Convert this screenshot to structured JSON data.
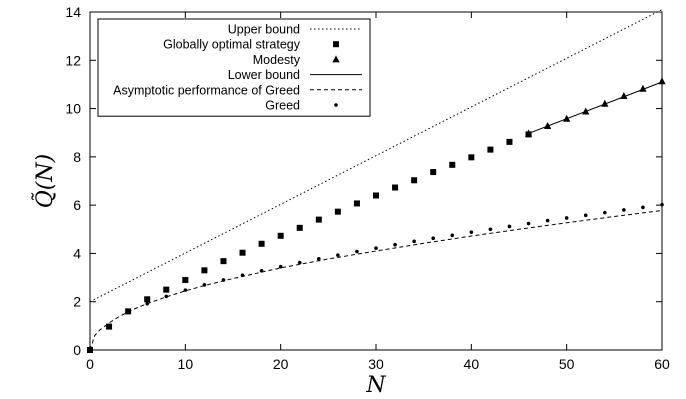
{
  "chart_data": {
    "type": "scatter",
    "title": "",
    "xlabel": "N",
    "ylabel": "Q̃(N)",
    "xlim": [
      0,
      60
    ],
    "ylim": [
      0,
      14
    ],
    "xticks": [
      "0",
      "10",
      "20",
      "30",
      "40",
      "50",
      "60"
    ],
    "yticks": [
      "0",
      "2",
      "4",
      "6",
      "8",
      "10",
      "12",
      "14"
    ],
    "legend_position": "top-left",
    "grid": false,
    "series": [
      {
        "name": "Upper bound",
        "kind": "line",
        "dash": "dotted",
        "x": [
          0,
          60
        ],
        "y": [
          2.0,
          14.1
        ]
      },
      {
        "name": "Globally optimal strategy",
        "kind": "marker",
        "marker": "square",
        "x": [
          0,
          2,
          4,
          6,
          8,
          10,
          12,
          14,
          16,
          18,
          20,
          22,
          24,
          26,
          28,
          30,
          32,
          34,
          36,
          38,
          40,
          42,
          44,
          46
        ],
        "y": [
          0.0,
          0.97,
          1.6,
          2.1,
          2.5,
          2.9,
          3.3,
          3.68,
          4.03,
          4.4,
          4.73,
          5.06,
          5.4,
          5.73,
          6.07,
          6.4,
          6.73,
          7.03,
          7.37,
          7.67,
          7.98,
          8.3,
          8.62,
          8.93
        ]
      },
      {
        "name": "Modesty",
        "kind": "marker",
        "marker": "triangle",
        "x": [
          46,
          48,
          50,
          52,
          54,
          56,
          58,
          60
        ],
        "y": [
          8.97,
          9.28,
          9.58,
          9.88,
          10.2,
          10.52,
          10.82,
          11.13
        ]
      },
      {
        "name": "Lower bound",
        "kind": "line",
        "dash": "solid",
        "x": [
          46,
          60
        ],
        "y": [
          8.97,
          11.1
        ]
      },
      {
        "name": "Asymptotic performance of Greed",
        "kind": "line",
        "dash": "dashed",
        "x": [
          0,
          0.5,
          1,
          2,
          3,
          4,
          5,
          6,
          8,
          10,
          12,
          15,
          20,
          25,
          30,
          35,
          40,
          45,
          50,
          55,
          60
        ],
        "y": [
          0.0,
          0.6,
          0.82,
          1.12,
          1.37,
          1.58,
          1.76,
          1.92,
          2.2,
          2.45,
          2.67,
          2.96,
          3.4,
          3.77,
          4.1,
          4.42,
          4.72,
          5.0,
          5.27,
          5.53,
          5.78
        ]
      },
      {
        "name": "Greed",
        "kind": "marker",
        "marker": "dot",
        "x": [
          0,
          2,
          4,
          6,
          8,
          10,
          12,
          14,
          16,
          18,
          20,
          22,
          24,
          26,
          28,
          30,
          32,
          34,
          36,
          38,
          40,
          42,
          44,
          46,
          48,
          50,
          52,
          54,
          56,
          58,
          60
        ],
        "y": [
          0.0,
          1.0,
          1.55,
          1.92,
          2.22,
          2.48,
          2.7,
          2.9,
          3.1,
          3.28,
          3.45,
          3.62,
          3.78,
          3.93,
          4.08,
          4.22,
          4.36,
          4.5,
          4.63,
          4.75,
          4.88,
          5.0,
          5.12,
          5.24,
          5.36,
          5.47,
          5.58,
          5.69,
          5.8,
          5.91,
          6.02
        ]
      }
    ]
  }
}
